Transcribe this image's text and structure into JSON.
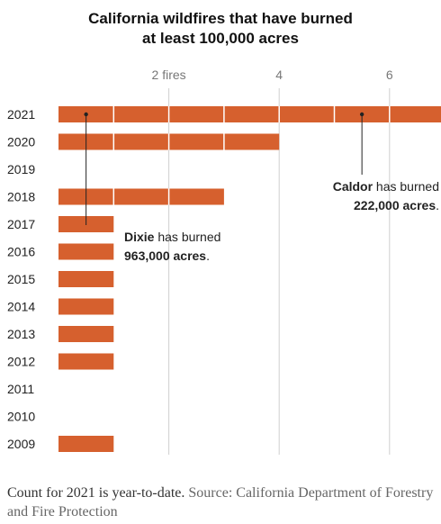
{
  "title_line1": "California wildfires that have burned",
  "title_line2": "at least 100,000 acres",
  "footer_note": "Count for 2021 is year-to-date.",
  "footer_source": "Source: California Department of Forestry and Fire Protection",
  "colors": {
    "bar": "#d6602e",
    "grid": "#cfcfcf",
    "separator": "#ffffff"
  },
  "annotations": [
    {
      "name": "Dixie",
      "year": "2021",
      "fire_index": 1,
      "line1_bold": "Dixie",
      "line1_rest": " has burned",
      "line2": "963,000 acres",
      "line2_suffix": ".",
      "align": "left"
    },
    {
      "name": "Caldor",
      "year": "2021",
      "fire_index": 6,
      "line1_bold": "Caldor",
      "line1_rest": " has burned",
      "line2": "222,000 acres",
      "line2_suffix": ".",
      "align": "right"
    }
  ],
  "chart_data": {
    "type": "bar",
    "orientation": "horizontal",
    "title": "California wildfires that have burned at least 100,000 acres",
    "categories": [
      "2021",
      "2020",
      "2019",
      "2018",
      "2017",
      "2016",
      "2015",
      "2014",
      "2013",
      "2012",
      "2011",
      "2010",
      "2009"
    ],
    "values": [
      7,
      4,
      0,
      3,
      1,
      1,
      1,
      1,
      1,
      1,
      0,
      0,
      1
    ],
    "xticks": [
      2,
      4,
      6
    ],
    "xtick_labels": [
      "2 fires",
      "4",
      "6"
    ],
    "xlim": [
      0,
      7
    ],
    "grid": true
  }
}
